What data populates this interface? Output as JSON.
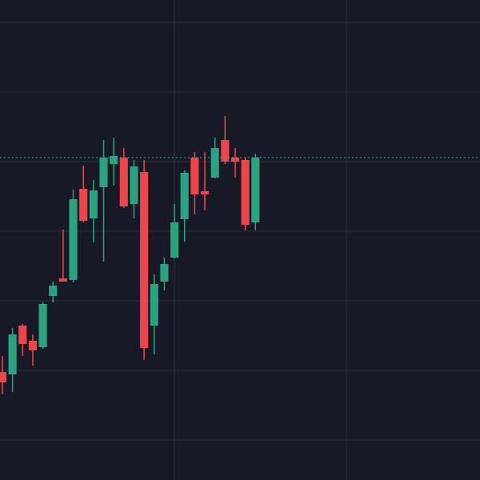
{
  "chart_data": {
    "type": "candlestick",
    "x": [
      0,
      1,
      2,
      3,
      4,
      5,
      6,
      7,
      8,
      9,
      10,
      11,
      12,
      13,
      14,
      15,
      16,
      17,
      18,
      19,
      20,
      21,
      22,
      23,
      24,
      25
    ],
    "open": [
      135,
      132,
      193,
      174,
      166,
      230,
      252,
      250,
      364,
      327,
      366,
      395,
      403,
      345,
      385,
      193,
      248,
      278,
      326,
      403,
      361,
      378,
      425,
      403,
      400,
      322
    ],
    "high": [
      155,
      190,
      195,
      182,
      222,
      248,
      313,
      363,
      393,
      375,
      425,
      428,
      415,
      400,
      400,
      257,
      278,
      345,
      387,
      410,
      410,
      428,
      455,
      415,
      403,
      408
    ],
    "low": [
      107,
      110,
      155,
      143,
      164,
      222,
      248,
      247,
      322,
      297,
      273,
      368,
      340,
      327,
      150,
      157,
      237,
      277,
      298,
      332,
      337,
      377,
      395,
      378,
      312,
      312
    ],
    "close": [
      122,
      182,
      170,
      162,
      220,
      243,
      248,
      351,
      324,
      362,
      403,
      405,
      342,
      392,
      165,
      245,
      270,
      322,
      384,
      357,
      357,
      415,
      398,
      398,
      319,
      403
    ],
    "up_color": "#2aa382",
    "down_color": "#f0444c",
    "background": "#171a26",
    "grid_color": "#2a2e3b",
    "last_price_color": "#2ab3a6",
    "ylim": [
      0,
      600
    ],
    "yticks": [
      50,
      137,
      224,
      311,
      398,
      485,
      572
    ],
    "xlim": [
      -0.237,
      47.19
    ],
    "xticks": [
      17,
      34
    ],
    "grid": true
  }
}
